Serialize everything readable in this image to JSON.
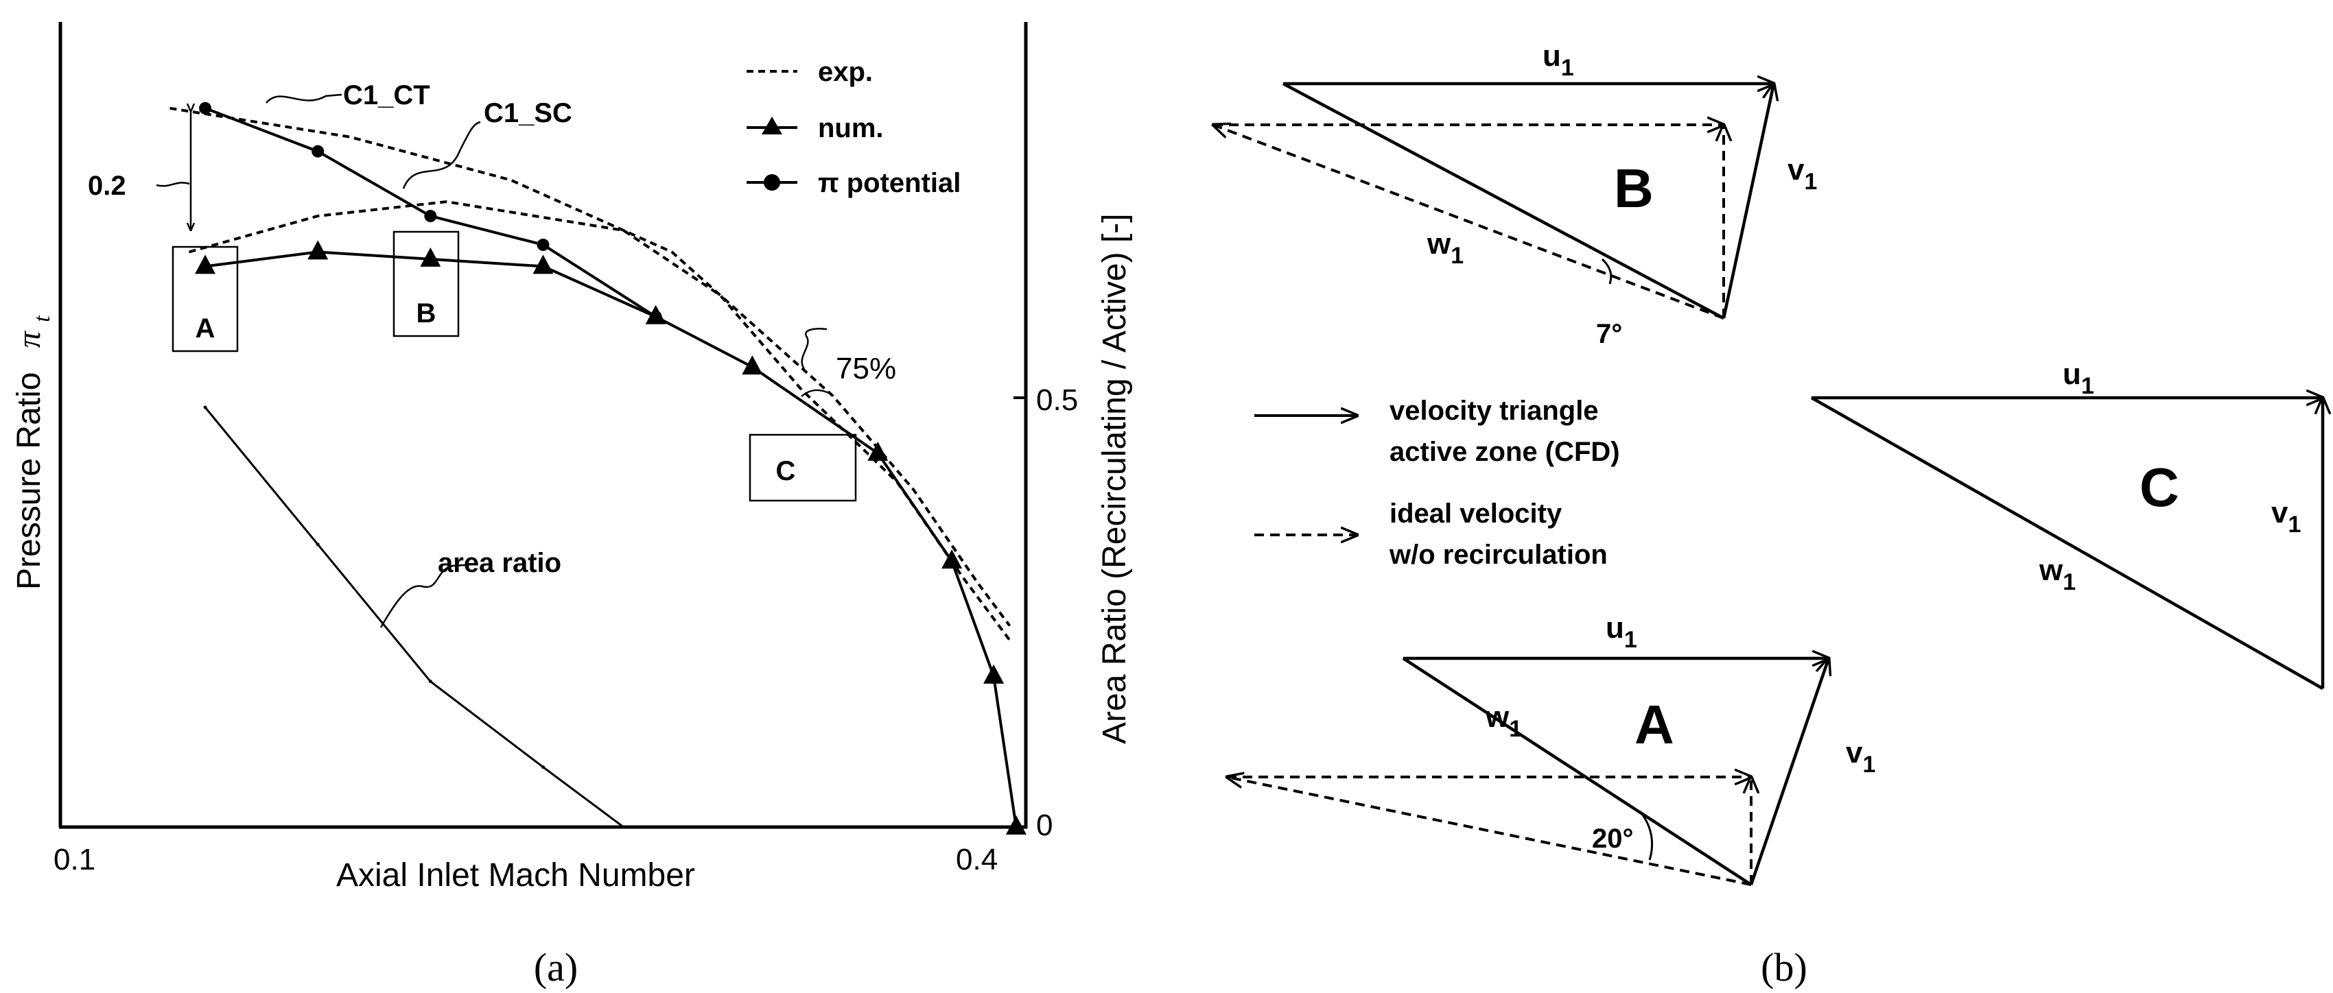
{
  "panel_a": {
    "caption": "(a)",
    "chart_data": {
      "type": "line",
      "xlabel": "Axial Inlet Mach Number",
      "ylabel_left": "Pressure Ratio",
      "ylabel_left_symbol": "π",
      "ylabel_left_sub": "t",
      "ylabel_right": "Area Ratio (Recirculating / Active) [-]",
      "x_ticks": [
        {
          "value": 0.1,
          "label": "0.1"
        },
        {
          "value": 0.4,
          "label": "0.4"
        }
      ],
      "y_right_ticks": [
        {
          "value": 0,
          "label": "0"
        },
        {
          "value": 0.5,
          "label": "0.5"
        }
      ],
      "xlim": [
        0.1,
        0.4
      ],
      "ylim_left": [
        1.18,
        2.3
      ],
      "ylim_right": [
        0,
        0.94
      ],
      "legend": [
        {
          "key": "exp",
          "label": "exp."
        },
        {
          "key": "num",
          "label": "num."
        },
        {
          "key": "pot",
          "label": "π potential"
        }
      ],
      "series": [
        {
          "key": "exp_ct",
          "style": "dashed",
          "x": [
            0.134,
            0.19,
            0.24,
            0.29,
            0.31,
            0.34,
            0.365,
            0.385,
            0.395
          ],
          "y": [
            2.18,
            2.14,
            2.08,
            1.98,
            1.9,
            1.78,
            1.65,
            1.52,
            1.46
          ]
        },
        {
          "key": "exp_sc",
          "style": "dashed",
          "x": [
            0.14,
            0.18,
            0.22,
            0.275,
            0.305,
            0.33,
            0.36,
            0.38,
            0.395
          ],
          "y": [
            1.98,
            2.03,
            2.05,
            2.01,
            1.92,
            1.79,
            1.66,
            1.53,
            1.44
          ]
        },
        {
          "key": "num",
          "style": "solid",
          "marker": "triangle",
          "x": [
            0.145,
            0.18,
            0.215,
            0.25,
            0.285,
            0.315,
            0.354,
            0.377,
            0.39,
            0.397
          ],
          "y": [
            1.96,
            1.98,
            1.97,
            1.96,
            1.89,
            1.82,
            1.7,
            1.55,
            1.39,
            1.18
          ]
        },
        {
          "key": "pot",
          "style": "solid",
          "marker": "circle",
          "x": [
            0.145,
            0.18,
            0.215,
            0.25,
            0.285
          ],
          "y": [
            2.18,
            2.12,
            2.03,
            1.99,
            1.89
          ]
        },
        {
          "key": "area_ratio",
          "style": "solid",
          "axis": "right",
          "x": [
            0.145,
            0.18,
            0.215,
            0.25,
            0.275
          ],
          "y": [
            0.49,
            0.33,
            0.17,
            0.07,
            0.0
          ]
        }
      ],
      "annotations": [
        {
          "text": "C1_CT"
        },
        {
          "text": "C1_SC"
        },
        {
          "text": "0.2"
        },
        {
          "text": "75%"
        },
        {
          "text": "area ratio"
        },
        {
          "text": "A"
        },
        {
          "text": "B"
        },
        {
          "text": "C"
        }
      ]
    }
  },
  "panel_b": {
    "caption": "(b)",
    "triangles": [
      {
        "label": "B",
        "angle": "7°"
      },
      {
        "label": "C"
      },
      {
        "label": "A",
        "angle": "20°"
      }
    ],
    "vector_labels": {
      "u": "u",
      "v": "v",
      "w": "w",
      "sub": "1"
    },
    "legend": [
      {
        "style": "solid",
        "line1": "velocity triangle",
        "line2": "active zone (CFD)"
      },
      {
        "style": "dashed",
        "line1": "ideal velocity",
        "line2": "w/o recirculation"
      }
    ]
  }
}
